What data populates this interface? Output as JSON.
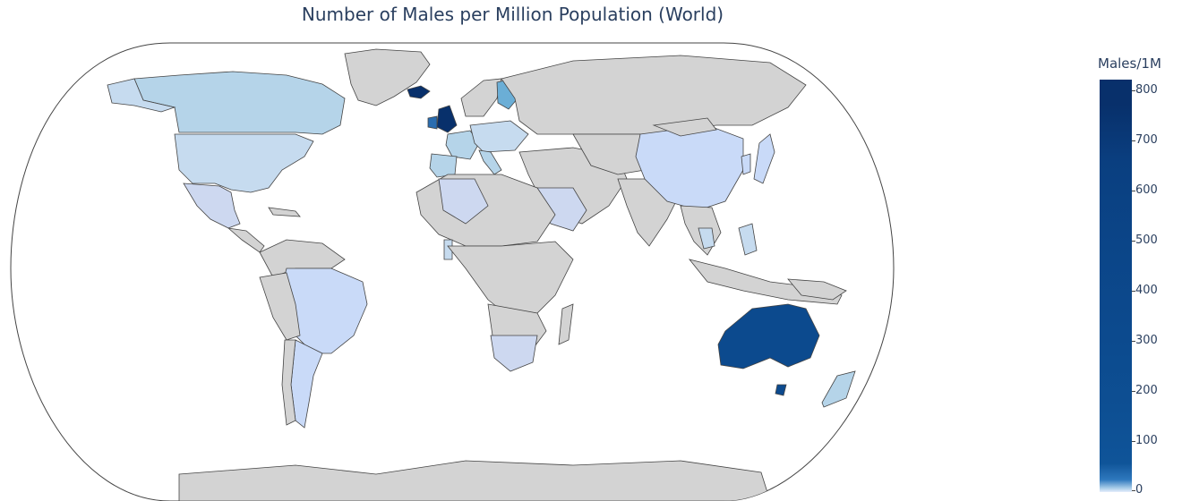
{
  "title": "Number of Males per Million Population (World)",
  "legend": {
    "title": "Males/1M",
    "ticks": [
      "800",
      "700",
      "600",
      "500",
      "400",
      "300",
      "200",
      "100",
      "0"
    ]
  },
  "colors": {
    "no_data": "#d3d3d3",
    "low": "#c6dbef",
    "mid": "#6baed6",
    "high": "#084a91",
    "max": "#08306b"
  }
}
